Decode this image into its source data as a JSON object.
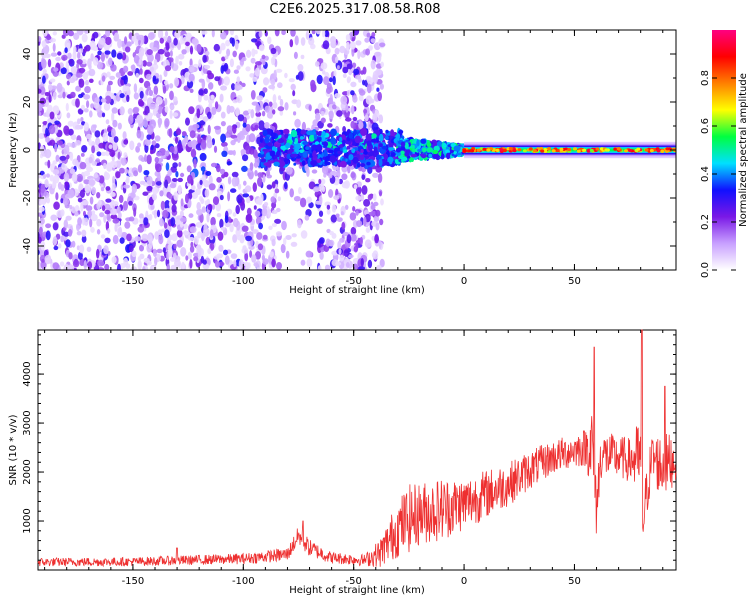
{
  "title": "C2E6.2025.317.08.58.R08",
  "chart_data": [
    {
      "type": "heatmap",
      "name": "spectrogram",
      "xlabel": "Height of straight line (km)",
      "ylabel": "Frequency (Hz)",
      "xlim": [
        -193,
        96
      ],
      "ylim": [
        -50,
        50
      ],
      "xticks": [
        -150,
        -100,
        -50,
        0,
        50
      ],
      "yticks": [
        -40,
        -20,
        0,
        20,
        40
      ],
      "colorbar": {
        "label": "Normalized spectral amplitude",
        "range": [
          0,
          1
        ],
        "ticks": [
          "0.0",
          "0.2",
          "0.4",
          "0.6",
          "0.8"
        ],
        "tick_values": [
          0.0,
          0.2,
          0.4,
          0.6,
          0.8
        ],
        "colors": [
          "#ffffff",
          "#c8a0ff",
          "#7a18e6",
          "#1010ff",
          "#00e0ff",
          "#00ff40",
          "#ffff00",
          "#ff8000",
          "#ff0000",
          "#ff0080"
        ]
      },
      "description_regions": [
        {
          "x_range": [
            -193,
            -40
          ],
          "y_range": [
            -50,
            50
          ],
          "character": "scattered noise, purple 0.05-0.3"
        },
        {
          "x_range": [
            -90,
            -30
          ],
          "y_range": [
            -5,
            8
          ],
          "character": "blue to cyan band 0.3-0.5"
        },
        {
          "x_range": [
            0,
            96
          ],
          "y_range": [
            -3,
            3
          ],
          "character": "narrow band near 0 Hz, green to red 0.4-0.9"
        }
      ]
    },
    {
      "type": "line",
      "name": "snr",
      "xlabel": "Height of straight line (km)",
      "ylabel": "SNR (10 * v/v)",
      "xlim": [
        -193,
        96
      ],
      "ylim": [
        0,
        4900
      ],
      "xticks": [
        -150,
        -100,
        -50,
        0,
        50
      ],
      "yticks": [
        1000,
        2000,
        3000,
        4000
      ],
      "color": "#ee3030",
      "envelope": {
        "x": [
          -193,
          -150,
          -100,
          -80,
          -75,
          -70,
          -60,
          -45,
          -38,
          -30,
          -25,
          -20,
          -10,
          0,
          10,
          20,
          30,
          40,
          50,
          55,
          58,
          60,
          62,
          70,
          75,
          80,
          81,
          85,
          90,
          93,
          96
        ],
        "mean": [
          160,
          170,
          230,
          320,
          700,
          450,
          250,
          200,
          350,
          850,
          1050,
          1150,
          1250,
          1350,
          1550,
          1750,
          2050,
          2300,
          2450,
          2500,
          2550,
          1300,
          2350,
          2300,
          2250,
          2250,
          1000,
          2300,
          2100,
          2200,
          2300
        ],
        "spread": [
          90,
          90,
          110,
          140,
          200,
          180,
          120,
          120,
          300,
          600,
          700,
          650,
          650,
          550,
          500,
          450,
          400,
          350,
          350,
          400,
          900,
          700,
          500,
          450,
          450,
          900,
          600,
          500,
          700,
          600,
          500
        ]
      },
      "spikes": [
        {
          "x": 59,
          "y": 4550
        },
        {
          "x": 80.5,
          "y": 4900
        },
        {
          "x": 91,
          "y": 3750
        },
        {
          "x": -130,
          "y": 450
        },
        {
          "x": -73,
          "y": 1000
        }
      ]
    }
  ]
}
